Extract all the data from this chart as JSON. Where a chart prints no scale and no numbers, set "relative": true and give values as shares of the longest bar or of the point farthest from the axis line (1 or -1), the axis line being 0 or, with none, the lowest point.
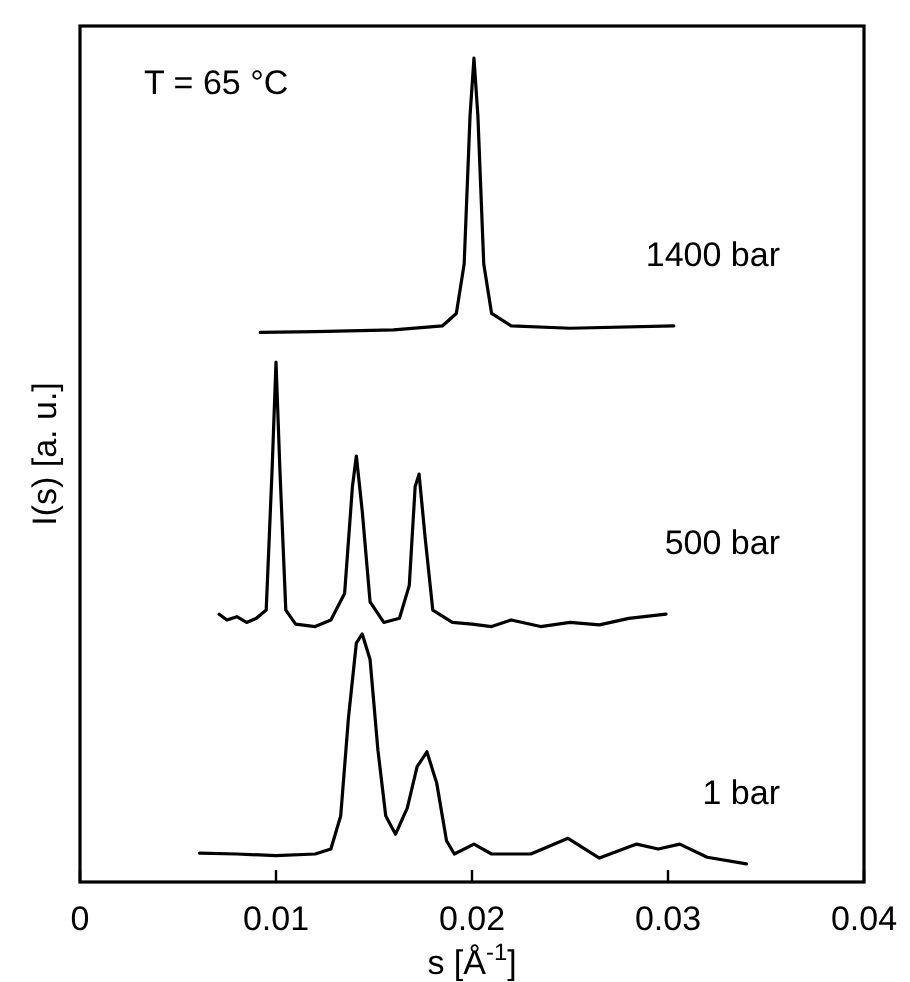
{
  "chart_data": {
    "type": "line",
    "relative": true,
    "xlabel": "s [Å$^{-1}$]",
    "ylabel": "I(s) [a. u.]",
    "annotations": [
      "T = 65 °C"
    ],
    "xlim": [
      0,
      0.04
    ],
    "xticks": [
      0,
      0.01,
      0.02,
      0.03,
      0.04
    ],
    "series": [
      {
        "name": "1400 bar",
        "color": "#000000",
        "x": [
          0.0092,
          0.012,
          0.016,
          0.0185,
          0.0192,
          0.0196,
          0.0199,
          0.0201,
          0.0203,
          0.0206,
          0.021,
          0.022,
          0.025,
          0.0303
        ],
        "values": [
          0.667,
          0.668,
          0.67,
          0.675,
          0.69,
          0.75,
          0.93,
          1.0,
          0.93,
          0.75,
          0.69,
          0.675,
          0.672,
          0.675
        ]
      },
      {
        "name": "500 bar",
        "color": "#000000",
        "x": [
          0.0071,
          0.0075,
          0.008,
          0.0085,
          0.009,
          0.0095,
          0.0098,
          0.01,
          0.0102,
          0.0105,
          0.011,
          0.012,
          0.0128,
          0.0135,
          0.0139,
          0.0141,
          0.0144,
          0.0148,
          0.0155,
          0.0163,
          0.0168,
          0.0171,
          0.0173,
          0.0176,
          0.018,
          0.019,
          0.02,
          0.021,
          0.022,
          0.0235,
          0.025,
          0.0265,
          0.028,
          0.0299
        ],
        "values": [
          0.325,
          0.318,
          0.322,
          0.315,
          0.32,
          0.33,
          0.5,
          0.631,
          0.5,
          0.33,
          0.313,
          0.31,
          0.318,
          0.35,
          0.48,
          0.517,
          0.45,
          0.34,
          0.315,
          0.32,
          0.36,
          0.48,
          0.495,
          0.42,
          0.33,
          0.315,
          0.313,
          0.31,
          0.318,
          0.31,
          0.315,
          0.312,
          0.32,
          0.325
        ]
      },
      {
        "name": "1 bar",
        "color": "#000000",
        "x": [
          0.0061,
          0.008,
          0.01,
          0.012,
          0.0128,
          0.0133,
          0.0137,
          0.0141,
          0.0144,
          0.0148,
          0.0152,
          0.0156,
          0.0161,
          0.0167,
          0.0172,
          0.0177,
          0.0182,
          0.0187,
          0.0191,
          0.0201,
          0.021,
          0.023,
          0.0249,
          0.0265,
          0.0284,
          0.0295,
          0.0306,
          0.032,
          0.034
        ],
        "values": [
          0.035,
          0.034,
          0.032,
          0.034,
          0.04,
          0.08,
          0.2,
          0.29,
          0.301,
          0.27,
          0.16,
          0.08,
          0.058,
          0.09,
          0.14,
          0.158,
          0.12,
          0.05,
          0.034,
          0.046,
          0.034,
          0.034,
          0.053,
          0.029,
          0.046,
          0.04,
          0.046,
          0.03,
          0.022
        ]
      }
    ]
  }
}
